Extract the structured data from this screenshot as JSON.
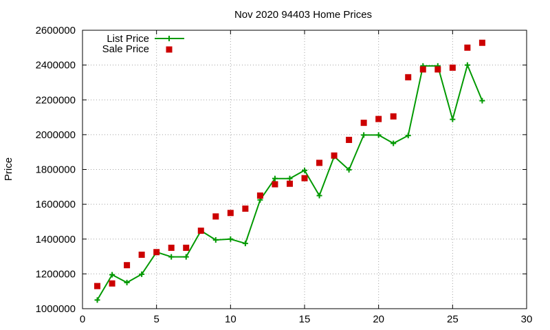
{
  "chart_data": {
    "type": "line",
    "title": "Nov 2020 94403 Home Prices",
    "xlabel": "",
    "ylabel": "Price",
    "xlim": [
      0,
      30
    ],
    "ylim": [
      1000000,
      2600000
    ],
    "xticks": [
      0,
      5,
      10,
      15,
      20,
      25,
      30
    ],
    "yticks": [
      1000000,
      1200000,
      1400000,
      1600000,
      1800000,
      2000000,
      2200000,
      2400000,
      2600000
    ],
    "grid": true,
    "legend_position": "top-left",
    "series": [
      {
        "name": "List Price",
        "style": "line+cross",
        "color": "#009900",
        "x": [
          1,
          2,
          3,
          4,
          5,
          6,
          7,
          8,
          9,
          10,
          11,
          12,
          13,
          14,
          15,
          16,
          17,
          18,
          19,
          20,
          21,
          22,
          23,
          24,
          25,
          26,
          27
        ],
        "y": [
          1050000,
          1195000,
          1150000,
          1198000,
          1325000,
          1298000,
          1298000,
          1448000,
          1395000,
          1400000,
          1375000,
          1625000,
          1748000,
          1748000,
          1795000,
          1650000,
          1875000,
          1798000,
          1998000,
          1998000,
          1950000,
          1995000,
          2395000,
          2395000,
          2088000,
          2400000,
          2195000
        ]
      },
      {
        "name": "Sale Price",
        "style": "square",
        "color": "#cc0000",
        "x": [
          1,
          2,
          3,
          4,
          5,
          6,
          7,
          8,
          9,
          10,
          11,
          12,
          13,
          14,
          15,
          16,
          17,
          18,
          19,
          20,
          21,
          22,
          23,
          24,
          25,
          26,
          27
        ],
        "y": [
          1130000,
          1145000,
          1250000,
          1310000,
          1325000,
          1350000,
          1350000,
          1448000,
          1530000,
          1550000,
          1575000,
          1650000,
          1715000,
          1718000,
          1750000,
          1838000,
          1880000,
          1970000,
          2068000,
          2090000,
          2105000,
          2330000,
          2375000,
          2375000,
          2385000,
          2500000,
          2528000
        ]
      }
    ]
  }
}
